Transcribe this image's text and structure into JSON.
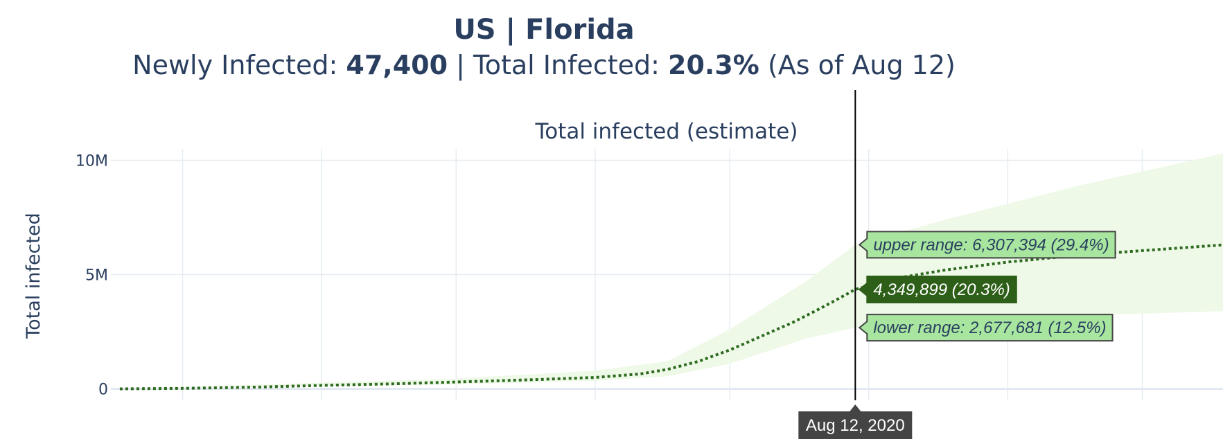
{
  "header": {
    "title": "US | Florida",
    "subtitle": {
      "newly_label": "Newly Infected: ",
      "newly_value": "47,400",
      "sep": " | ",
      "total_label": "Total Infected: ",
      "total_value": "20.3%",
      "asof": " (As of Aug 12)"
    }
  },
  "chart_data": {
    "type": "line",
    "title": "Total infected (estimate)",
    "ylabel": "Total infected",
    "xlabel": "",
    "ylim": [
      -500000,
      10500000
    ],
    "xlim": [
      "2020-02-28",
      "2020-11-02"
    ],
    "yticks": [
      {
        "value": 0,
        "label": "0"
      },
      {
        "value": 5000000,
        "label": "5M"
      },
      {
        "value": 10000000,
        "label": "10M"
      }
    ],
    "x_gridlines": [
      "2020-03-15",
      "2020-04-15",
      "2020-05-15",
      "2020-06-15",
      "2020-07-15",
      "2020-08-15",
      "2020-09-15",
      "2020-10-15"
    ],
    "grid": true,
    "series": [
      {
        "color": "#2d6a1f",
        "style": "dotted",
        "points": [
          [
            "2020-03-01",
            0
          ],
          [
            "2020-03-15",
            20000
          ],
          [
            "2020-04-01",
            80000
          ],
          [
            "2020-04-15",
            150000
          ],
          [
            "2020-05-01",
            220000
          ],
          [
            "2020-05-15",
            300000
          ],
          [
            "2020-06-01",
            400000
          ],
          [
            "2020-06-15",
            500000
          ],
          [
            "2020-06-25",
            650000
          ],
          [
            "2020-07-01",
            850000
          ],
          [
            "2020-07-08",
            1200000
          ],
          [
            "2020-07-15",
            1700000
          ],
          [
            "2020-07-22",
            2300000
          ],
          [
            "2020-07-29",
            2900000
          ],
          [
            "2020-08-05",
            3600000
          ],
          [
            "2020-08-12",
            4349899
          ],
          [
            "2020-08-20",
            4800000
          ],
          [
            "2020-09-01",
            5200000
          ],
          [
            "2020-09-15",
            5550000
          ],
          [
            "2020-10-01",
            5850000
          ],
          [
            "2020-10-15",
            6050000
          ],
          [
            "2020-11-02",
            6300000
          ]
        ]
      }
    ],
    "band": {
      "color": "#eef9e8",
      "upper": [
        [
          "2020-03-01",
          0
        ],
        [
          "2020-05-15",
          450000
        ],
        [
          "2020-06-15",
          800000
        ],
        [
          "2020-07-01",
          1200000
        ],
        [
          "2020-07-15",
          2600000
        ],
        [
          "2020-08-01",
          4700000
        ],
        [
          "2020-08-12",
          6307394
        ],
        [
          "2020-09-01",
          7400000
        ],
        [
          "2020-10-01",
          8900000
        ],
        [
          "2020-11-02",
          10300000
        ]
      ],
      "lower": [
        [
          "2020-03-01",
          0
        ],
        [
          "2020-05-15",
          200000
        ],
        [
          "2020-06-15",
          350000
        ],
        [
          "2020-07-01",
          550000
        ],
        [
          "2020-07-15",
          1100000
        ],
        [
          "2020-08-01",
          2200000
        ],
        [
          "2020-08-12",
          2677681
        ],
        [
          "2020-09-01",
          2950000
        ],
        [
          "2020-10-01",
          3200000
        ],
        [
          "2020-11-02",
          3400000
        ]
      ]
    },
    "cursor": {
      "x": "2020-08-12",
      "label": "Aug 12, 2020",
      "hover": [
        {
          "y": 6307394,
          "text": "upper range: 6,307,394 (29.4%)",
          "bg": "#a8e6a0",
          "fg": "#2a3f5f",
          "border": "#444444"
        },
        {
          "y": 4349899,
          "text": "4,349,899 (20.3%)",
          "bg": "#2d5f18",
          "fg": "#ffffff",
          "border": "#2d5f18"
        },
        {
          "y": 2677681,
          "text": "lower range: 2,677,681 (12.5%)",
          "bg": "#a8e6a0",
          "fg": "#2a3f5f",
          "border": "#444444"
        }
      ]
    }
  }
}
